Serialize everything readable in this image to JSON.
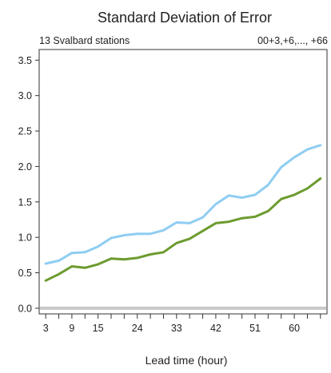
{
  "chart_data": {
    "type": "line",
    "title": "Standard Deviation of Error",
    "subtitle_left": "13 Svalbard stations",
    "subtitle_right": "00+3,+6,..., +66",
    "xlabel": "Lead time (hour)",
    "ylabel": "",
    "xlim": [
      1.5,
      67.5
    ],
    "ylim": [
      -0.08,
      3.65
    ],
    "x_ticks": [
      3,
      9,
      15,
      24,
      33,
      42,
      51,
      60
    ],
    "y_ticks": [
      0.0,
      0.5,
      1.0,
      1.5,
      2.0,
      2.5,
      3.0,
      3.5
    ],
    "y_tick_labels": [
      "0.0",
      "0.5",
      "1.0",
      "1.5",
      "2.0",
      "2.5",
      "3.0",
      "3.5"
    ],
    "zero_line": true,
    "grid": false,
    "legend": "none",
    "x": [
      3,
      6,
      9,
      12,
      15,
      18,
      21,
      24,
      27,
      30,
      33,
      36,
      39,
      42,
      45,
      48,
      51,
      54,
      57,
      60,
      63,
      66
    ],
    "series": [
      {
        "color": "#8fcdf2",
        "values": [
          0.63,
          0.67,
          0.78,
          0.79,
          0.87,
          0.99,
          1.03,
          1.05,
          1.05,
          1.1,
          1.21,
          1.2,
          1.28,
          1.47,
          1.59,
          1.56,
          1.6,
          1.74,
          1.99,
          2.13,
          2.24,
          2.3
        ]
      },
      {
        "color": "#6c9b2f",
        "values": [
          0.39,
          0.48,
          0.59,
          0.57,
          0.62,
          0.7,
          0.69,
          0.71,
          0.76,
          0.79,
          0.92,
          0.98,
          1.09,
          1.2,
          1.22,
          1.27,
          1.29,
          1.37,
          1.54,
          1.6,
          1.69,
          1.83
        ]
      }
    ]
  }
}
